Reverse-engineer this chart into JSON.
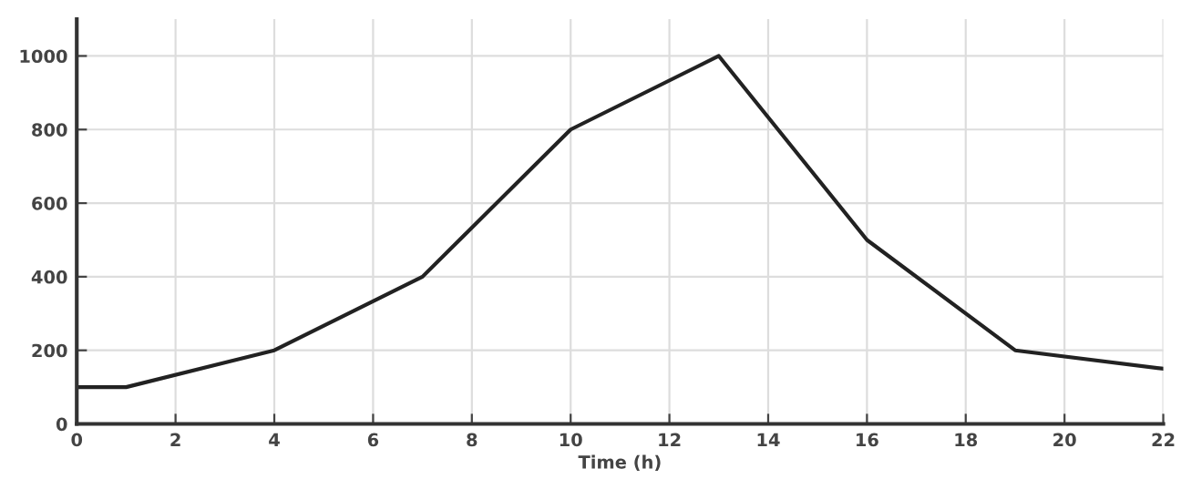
{
  "chart_data": {
    "type": "line",
    "xlabel": "Time (h)",
    "x": [
      0,
      1,
      4,
      7,
      10,
      13,
      16,
      19,
      22
    ],
    "series": [
      {
        "color": "#222222",
        "values": [
          100,
          100,
          200,
          400,
          800,
          1000,
          500,
          200,
          150
        ]
      }
    ],
    "xlim": [
      0,
      22
    ],
    "xticks": [
      0,
      2,
      4,
      6,
      8,
      10,
      12,
      14,
      16,
      18,
      20,
      22
    ],
    "ylim": [
      0,
      1100
    ],
    "yticks": [
      0,
      200,
      400,
      600,
      800,
      1000
    ],
    "grid": true,
    "legend": false,
    "marker": "none",
    "line_style": "solid"
  }
}
